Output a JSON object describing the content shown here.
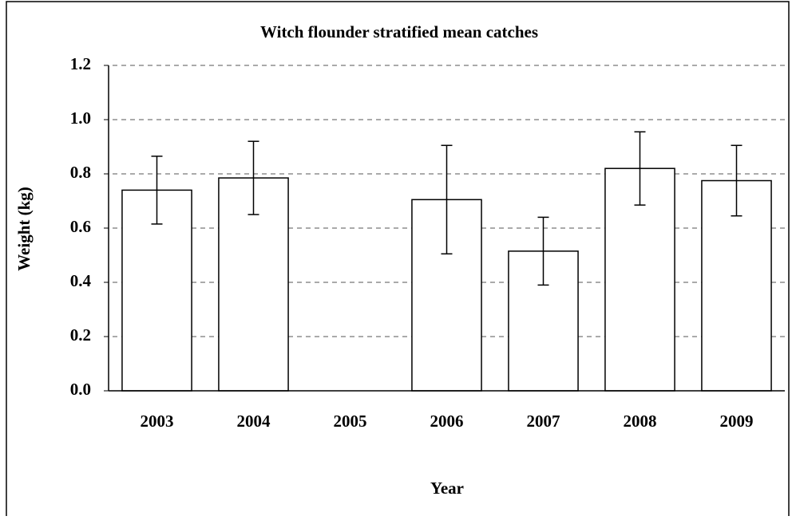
{
  "chart_data": {
    "type": "bar",
    "title": "Witch flounder stratified mean catches",
    "x_label": "Year",
    "y_label": "Weight (kg)",
    "categories": [
      "2003",
      "2004",
      "2005",
      "2006",
      "2007",
      "2008",
      "2009"
    ],
    "values": [
      0.74,
      0.785,
      null,
      0.705,
      0.515,
      0.82,
      0.775
    ],
    "errors": [
      0.125,
      0.135,
      null,
      0.2,
      0.125,
      0.135,
      0.13
    ],
    "color": "#ffffff",
    "ylim": [
      0,
      1.2
    ],
    "yticks": [
      {
        "value": 0,
        "label": "0.0"
      },
      0.2,
      0.4,
      0.6,
      0.8,
      {
        "value": 1,
        "label": "1.0"
      },
      1.2
    ],
    "grid": true
  }
}
